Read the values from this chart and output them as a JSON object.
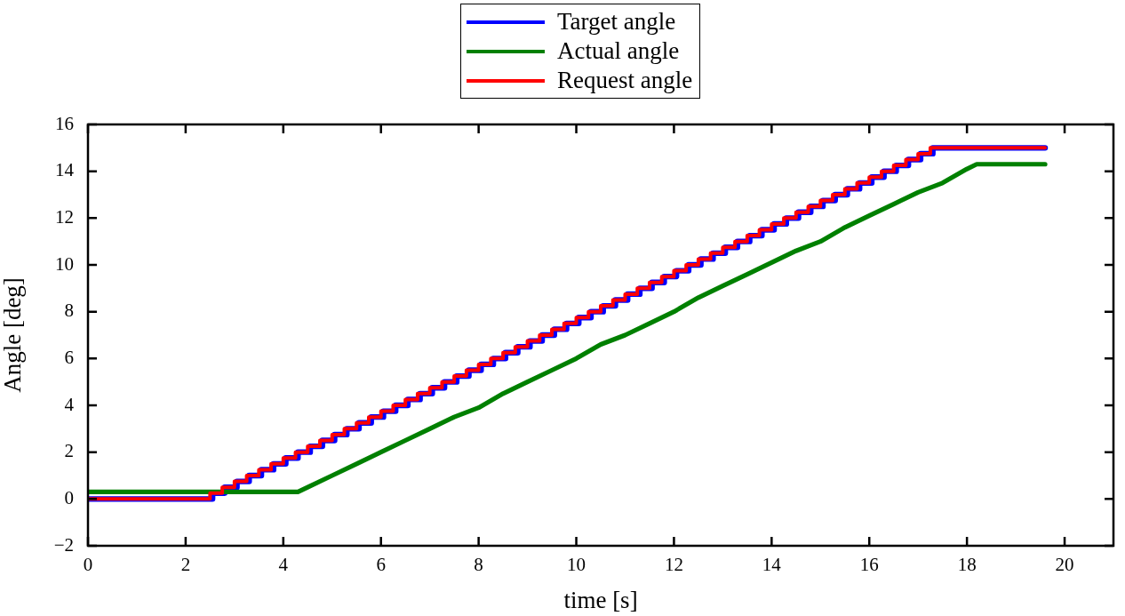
{
  "chart_data": {
    "type": "line",
    "xlabel": "time [s]",
    "ylabel": "Angle [deg]",
    "xlim": [
      0,
      21
    ],
    "xticks": [
      0,
      2,
      4,
      6,
      8,
      10,
      12,
      14,
      16,
      18,
      20
    ],
    "ylim": [
      -2,
      16
    ],
    "yticks": [
      {
        "value": -2,
        "label": "−2"
      },
      0,
      2,
      4,
      6,
      8,
      10,
      12,
      14,
      16
    ],
    "grid": false,
    "legend": "top",
    "marker": "none",
    "line_style": "solid",
    "series": [
      {
        "name": "Target angle",
        "type": "step",
        "color": "#0000ff",
        "x": [
          0,
          2.55,
          2.8,
          3.05,
          3.3,
          3.55,
          3.8,
          4.05,
          4.3,
          4.55,
          4.8,
          5.05,
          5.3,
          5.55,
          5.8,
          6.05,
          6.3,
          6.55,
          6.8,
          7.05,
          7.3,
          7.55,
          7.8,
          8.05,
          8.3,
          8.55,
          8.8,
          9.05,
          9.3,
          9.55,
          9.8,
          10.05,
          10.3,
          10.55,
          10.8,
          11.05,
          11.3,
          11.55,
          11.8,
          12.05,
          12.3,
          12.55,
          12.8,
          13.05,
          13.3,
          13.55,
          13.8,
          14.05,
          14.3,
          14.55,
          14.8,
          15.05,
          15.3,
          15.55,
          15.8,
          16.05,
          16.3,
          16.55,
          16.8,
          17.05,
          17.3,
          19.6
        ],
        "values": [
          0,
          0.25,
          0.5,
          0.75,
          1,
          1.25,
          1.5,
          1.75,
          2,
          2.25,
          2.5,
          2.75,
          3,
          3.25,
          3.5,
          3.75,
          4,
          4.25,
          4.5,
          4.75,
          5,
          5.25,
          5.5,
          5.75,
          6,
          6.25,
          6.5,
          6.75,
          7,
          7.25,
          7.5,
          7.75,
          8,
          8.25,
          8.5,
          8.75,
          9,
          9.25,
          9.5,
          9.75,
          10,
          10.25,
          10.5,
          10.75,
          11,
          11.25,
          11.5,
          11.75,
          12,
          12.25,
          12.5,
          12.75,
          13,
          13.25,
          13.5,
          13.75,
          14,
          14.25,
          14.5,
          14.75,
          15,
          15
        ]
      },
      {
        "name": "Actual angle",
        "color": "#008000",
        "x": [
          0,
          4.3,
          4.5,
          5,
          5.5,
          6,
          6.5,
          7,
          7.5,
          8,
          8.5,
          9,
          9.5,
          10,
          10.5,
          11,
          11.5,
          12,
          12.5,
          13,
          13.5,
          14,
          14.5,
          15,
          15.5,
          16,
          16.5,
          17,
          17.5,
          18,
          18.2,
          19.6
        ],
        "values": [
          0.3,
          0.3,
          0.5,
          1.0,
          1.5,
          2.0,
          2.5,
          3.0,
          3.5,
          3.9,
          4.5,
          5.0,
          5.5,
          6.0,
          6.6,
          7.0,
          7.5,
          8.0,
          8.6,
          9.1,
          9.6,
          10.1,
          10.6,
          11.0,
          11.6,
          12.1,
          12.6,
          13.1,
          13.5,
          14.1,
          14.3,
          14.3
        ]
      },
      {
        "name": "Request angle",
        "type": "step",
        "color": "#ff0000",
        "x": [
          0,
          2.5,
          2.75,
          3,
          3.25,
          3.5,
          3.75,
          4,
          4.25,
          4.5,
          4.75,
          5,
          5.25,
          5.5,
          5.75,
          6,
          6.25,
          6.5,
          6.75,
          7,
          7.25,
          7.5,
          7.75,
          8,
          8.25,
          8.5,
          8.75,
          9,
          9.25,
          9.5,
          9.75,
          10,
          10.25,
          10.5,
          10.75,
          11,
          11.25,
          11.5,
          11.75,
          12,
          12.25,
          12.5,
          12.75,
          13,
          13.25,
          13.5,
          13.75,
          14,
          14.25,
          14.5,
          14.75,
          15,
          15.25,
          15.5,
          15.75,
          16,
          16.25,
          16.5,
          16.75,
          17,
          17.25,
          19.6
        ],
        "values": [
          0,
          0.25,
          0.5,
          0.75,
          1,
          1.25,
          1.5,
          1.75,
          2,
          2.25,
          2.5,
          2.75,
          3,
          3.25,
          3.5,
          3.75,
          4,
          4.25,
          4.5,
          4.75,
          5,
          5.25,
          5.5,
          5.75,
          6,
          6.25,
          6.5,
          6.75,
          7,
          7.25,
          7.5,
          7.75,
          8,
          8.25,
          8.5,
          8.75,
          9,
          9.25,
          9.5,
          9.75,
          10,
          10.25,
          10.5,
          10.75,
          11,
          11.25,
          11.5,
          11.75,
          12,
          12.25,
          12.5,
          12.75,
          13,
          13.25,
          13.5,
          13.75,
          14,
          14.25,
          14.5,
          14.75,
          15,
          15
        ]
      }
    ]
  }
}
